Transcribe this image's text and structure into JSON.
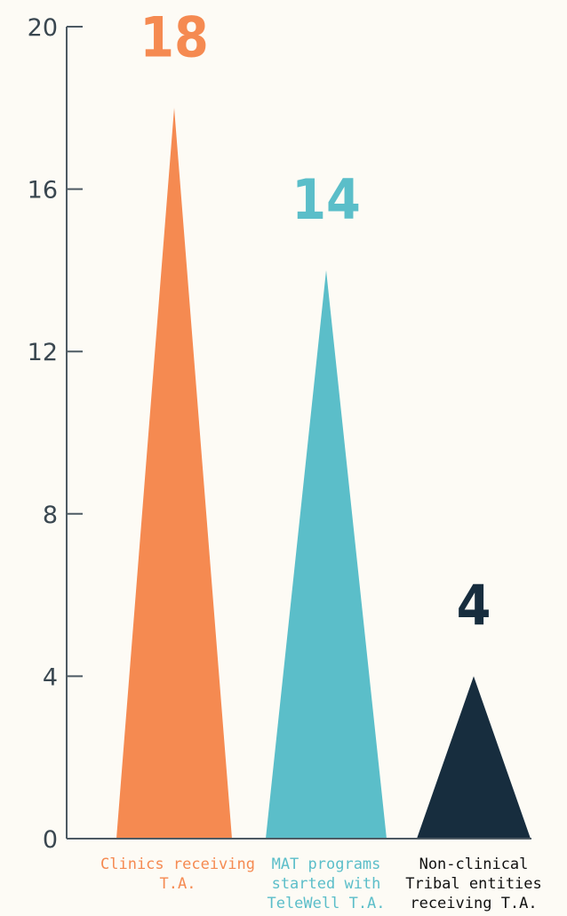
{
  "chart_data": {
    "type": "bar",
    "mark_shape": "triangle",
    "categories": [
      "Clinics receiving T.A.",
      "MAT programs started with TeleWell T.A.",
      "Non-clinical Tribal entities receiving T.A."
    ],
    "category_lines": [
      [
        "Clinics receiving",
        "T.A."
      ],
      [
        "MAT programs",
        "started with",
        "TeleWell T.A."
      ],
      [
        "Non-clinical",
        "Tribal entities",
        "receiving T.A."
      ]
    ],
    "values": [
      18,
      14,
      4
    ],
    "value_labels": [
      "18",
      "14",
      "4"
    ],
    "colors": [
      "#f58a51",
      "#5bbec9",
      "#172d3e"
    ],
    "label_colors": [
      "#f58a51",
      "#5bbec9",
      "#111111"
    ],
    "ylim": [
      0,
      20
    ],
    "yticks": [
      0,
      4,
      8,
      12,
      16,
      20
    ],
    "ytick_labels": [
      "0",
      "4",
      "8",
      "12",
      "16",
      "20"
    ],
    "grid": false,
    "title": "",
    "xlabel": "",
    "ylabel": ""
  }
}
